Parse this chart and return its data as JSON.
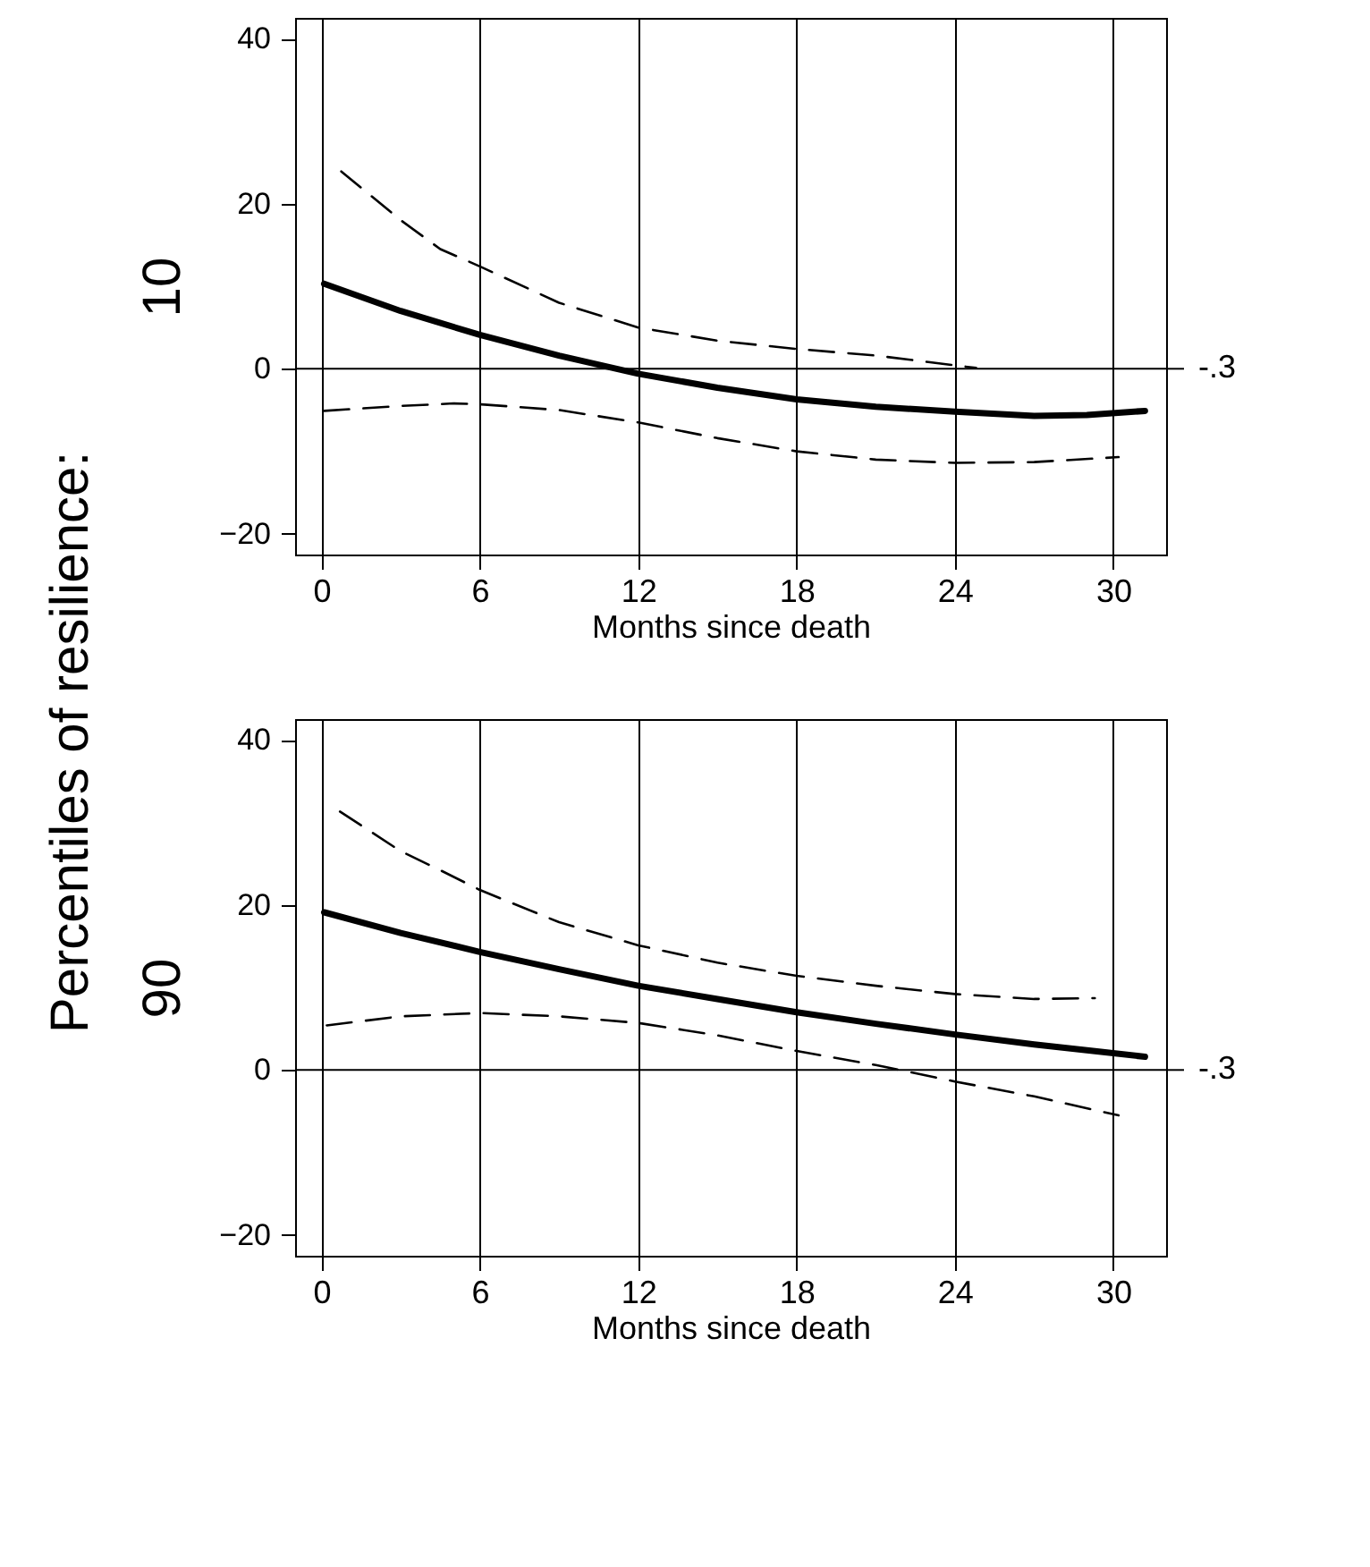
{
  "chart_data": [
    {
      "type": "line",
      "ylabel": "10",
      "xlabel": "Months since death",
      "annotations": [
        "Percentiles of resilience:",
        "-.3"
      ],
      "xlim": [
        -1,
        32
      ],
      "ylim": [
        -22.5,
        42.5
      ],
      "xticks": [
        0,
        6,
        12,
        18,
        24,
        30
      ],
      "yticks": [
        -20,
        0,
        20,
        40
      ],
      "grid": "x",
      "ref_lines": [
        {
          "axis": "y",
          "value": 0
        }
      ],
      "series": [
        {
          "color": "#000000",
          "line_style": "solid",
          "x": [
            0.1,
            3,
            6,
            9,
            12,
            15,
            18,
            21,
            24,
            27,
            29,
            31.2
          ],
          "values": [
            10.3,
            7.0,
            4.1,
            1.6,
            -0.6,
            -2.3,
            -3.7,
            -4.6,
            -5.2,
            -5.7,
            -5.6,
            -5.1
          ]
        },
        {
          "color": "#000000",
          "line_style": "dashed",
          "x": [
            0.75,
            3,
            4.5,
            6,
            9,
            12,
            15,
            18,
            21,
            24.8
          ],
          "values": [
            23.9,
            18,
            14.5,
            12.4,
            8.0,
            5.0,
            3.4,
            2.4,
            1.6,
            0.1
          ]
        },
        {
          "color": "#000000",
          "line_style": "dashed",
          "x": [
            0.1,
            3,
            5,
            6,
            9,
            12,
            15,
            18,
            21,
            24,
            27,
            30.2
          ],
          "values": [
            -5.1,
            -4.5,
            -4.2,
            -4.3,
            -5.0,
            -6.5,
            -8.4,
            -10.0,
            -11.0,
            -11.4,
            -11.3,
            -10.7
          ]
        }
      ]
    },
    {
      "type": "line",
      "ylabel": "90",
      "xlabel": "Months since death",
      "annotations": [
        "-.3"
      ],
      "xlim": [
        -1,
        32
      ],
      "ylim": [
        -22.5,
        42.5
      ],
      "xticks": [
        0,
        6,
        12,
        18,
        24,
        30
      ],
      "yticks": [
        -20,
        0,
        20,
        40
      ],
      "grid": "x",
      "ref_lines": [
        {
          "axis": "y",
          "value": 0
        }
      ],
      "series": [
        {
          "color": "#000000",
          "line_style": "solid",
          "x": [
            0.1,
            3,
            6,
            9,
            12,
            15,
            18,
            21,
            24,
            27,
            29,
            31.2
          ],
          "values": [
            19.1,
            16.6,
            14.3,
            12.2,
            10.2,
            8.6,
            7.0,
            5.6,
            4.3,
            3.1,
            2.4,
            1.6
          ]
        },
        {
          "color": "#000000",
          "line_style": "dashed",
          "x": [
            0.7,
            3,
            4.5,
            6,
            9,
            12,
            15,
            18,
            21,
            24,
            27,
            29.3
          ],
          "values": [
            31.3,
            26.5,
            24.2,
            21.8,
            17.9,
            15.1,
            13.0,
            11.4,
            10.2,
            9.2,
            8.6,
            8.7
          ]
        },
        {
          "color": "#000000",
          "line_style": "dashed",
          "x": [
            0.2,
            3,
            6,
            9,
            12,
            15,
            18,
            21,
            24,
            27,
            30.2
          ],
          "values": [
            5.4,
            6.5,
            6.9,
            6.5,
            5.7,
            4.2,
            2.3,
            0.6,
            -1.4,
            -3.2,
            -5.5
          ]
        }
      ]
    }
  ]
}
